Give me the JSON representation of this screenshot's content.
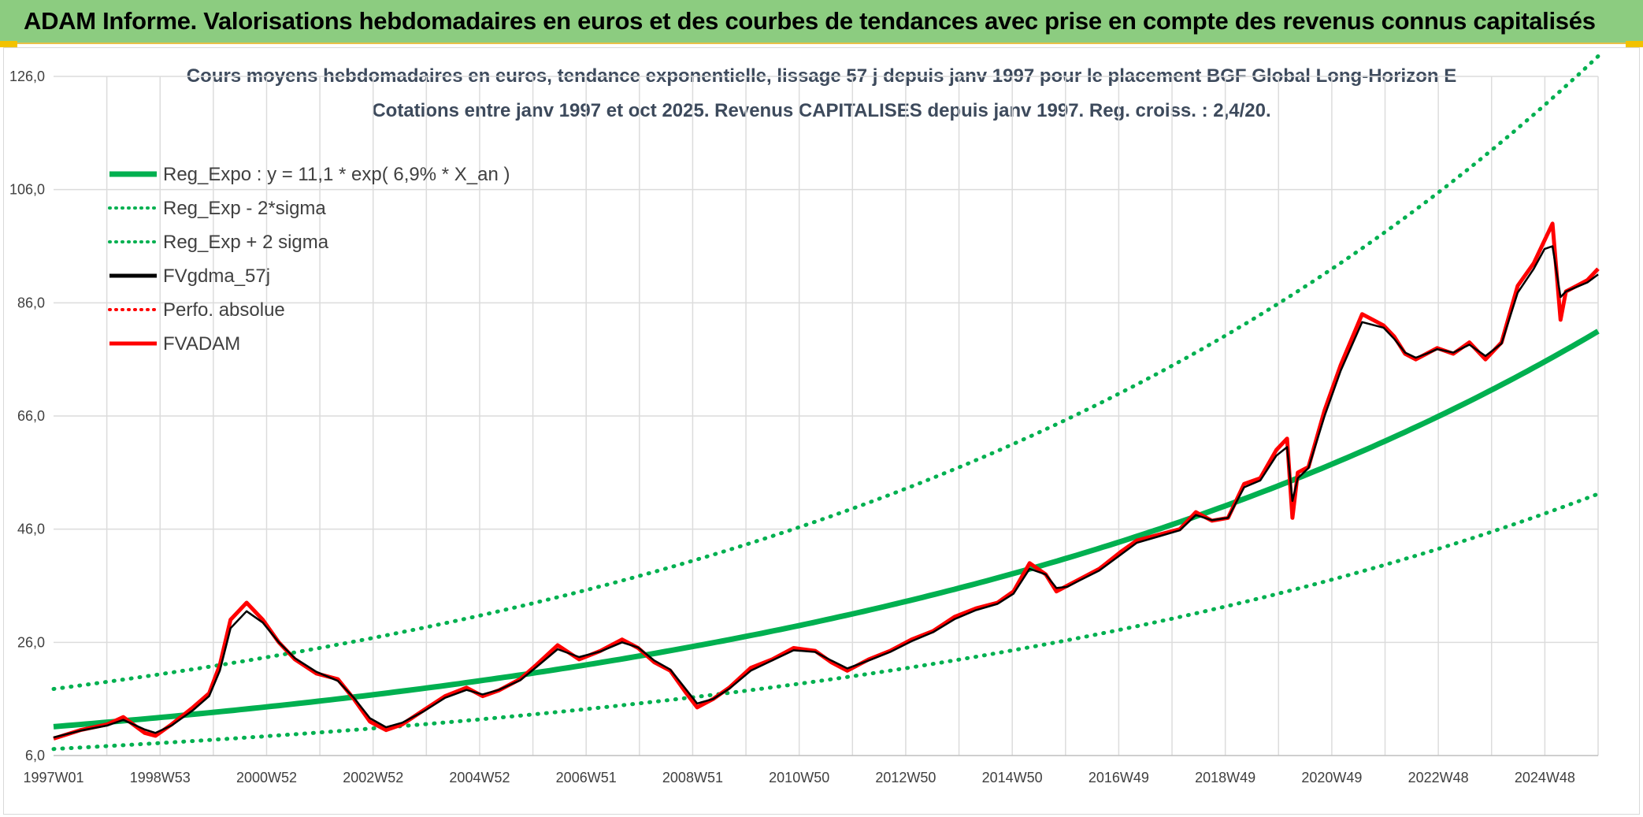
{
  "header": {
    "title": "ADAM Informe. Valorisations hebdomadaires en euros et des courbes de tendances avec prise en compte des revenus connus capitalisés"
  },
  "colors": {
    "banner": "#8ccc80",
    "green": "#00b050",
    "red": "#ff0000",
    "black": "#000000",
    "grid": "#dcdcdc",
    "title": "#3d4a5c"
  },
  "chart_data": {
    "type": "line",
    "title_line1": "Cours moyens hebdomadaires en euros, tendance exponentielle, lissage 57 j depuis janv 1997 pour le placement BGF Global Long-Horizon E",
    "title_line2": "Cotations entre janv 1997 et oct 2025. Revenus CAPITALISES depuis janv 1997. Reg. croiss. : 2,4/20.",
    "xlabel": "",
    "ylabel": "",
    "xlim": [
      1997.0,
      2025.8
    ],
    "ylim": [
      6.0,
      126.0
    ],
    "y_ticks": [
      "6,0",
      "26,0",
      "46,0",
      "66,0",
      "86,0",
      "106,0",
      "126,0"
    ],
    "x_ticks": [
      "1997W01",
      "1998W53",
      "2000W52",
      "2002W52",
      "2004W52",
      "2006W51",
      "2008W51",
      "2010W50",
      "2012W50",
      "2014W50",
      "2016W49",
      "2018W49",
      "2020W49",
      "2022W48",
      "2024W48"
    ],
    "legend": [
      {
        "name": "Reg_Expo : y = 11,1 * exp( 6,9% *  X_an )",
        "style": "solid",
        "color": "#00b050"
      },
      {
        "name": "Reg_Exp - 2*sigma",
        "style": "dotted",
        "color": "#00b050"
      },
      {
        "name": "Reg_Exp + 2 sigma",
        "style": "dotted",
        "color": "#00b050"
      },
      {
        "name": "FVgdma_57j",
        "style": "solid",
        "color": "#000000"
      },
      {
        "name": "Perfo. absolue",
        "style": "dotted",
        "color": "#ff0000"
      },
      {
        "name": "FVADAM",
        "style": "solid",
        "color": "#ff0000"
      }
    ],
    "regression": {
      "a": 11.1,
      "b": 0.069,
      "lower_factor": 0.645,
      "upper_factor": 1.6
    },
    "series": [
      {
        "name": "FVADAM",
        "x": [
          1997.0,
          1997.5,
          1998.0,
          1998.3,
          1998.7,
          1998.9,
          1999.2,
          1999.6,
          1999.9,
          2000.1,
          2000.3,
          2000.6,
          2000.9,
          2001.2,
          2001.5,
          2001.9,
          2002.3,
          2002.6,
          2002.9,
          2003.2,
          2003.5,
          2003.9,
          2004.3,
          2004.7,
          2005.0,
          2005.3,
          2005.7,
          2006.0,
          2006.4,
          2006.8,
          2007.2,
          2007.6,
          2007.9,
          2008.2,
          2008.5,
          2008.8,
          2009.0,
          2009.3,
          2009.6,
          2010.0,
          2010.4,
          2010.8,
          2011.2,
          2011.5,
          2011.8,
          2012.2,
          2012.6,
          2013.0,
          2013.4,
          2013.8,
          2014.2,
          2014.6,
          2014.9,
          2015.2,
          2015.5,
          2015.7,
          2015.9,
          2016.1,
          2016.5,
          2016.9,
          2017.2,
          2017.6,
          2018.0,
          2018.3,
          2018.6,
          2018.9,
          2019.2,
          2019.5,
          2019.8,
          2020.0,
          2020.1,
          2020.2,
          2020.4,
          2020.7,
          2021.0,
          2021.4,
          2021.8,
          2022.0,
          2022.2,
          2022.4,
          2022.6,
          2022.8,
          2023.1,
          2023.4,
          2023.7,
          2024.0,
          2024.3,
          2024.6,
          2024.8,
          2024.95,
          2025.1,
          2025.2,
          2025.4,
          2025.6,
          2025.8
        ],
        "values": [
          9.0,
          10.5,
          11.5,
          12.8,
          10.0,
          9.5,
          11.5,
          14.5,
          17.0,
          22.0,
          30.0,
          33.0,
          30.0,
          26.0,
          23.0,
          20.5,
          19.5,
          16.0,
          12.0,
          10.5,
          11.5,
          14.0,
          16.5,
          18.0,
          16.5,
          17.5,
          19.5,
          22.0,
          25.5,
          23.0,
          24.5,
          26.5,
          25.0,
          22.5,
          21.0,
          17.0,
          14.5,
          16.0,
          18.0,
          21.5,
          23.0,
          25.0,
          24.5,
          22.5,
          21.0,
          23.0,
          24.5,
          26.5,
          28.0,
          30.5,
          32.0,
          33.0,
          35.0,
          40.0,
          38.0,
          35.0,
          36.0,
          37.0,
          39.0,
          42.0,
          44.0,
          45.0,
          46.0,
          49.0,
          47.5,
          48.0,
          54.0,
          55.0,
          60.0,
          62.0,
          48.0,
          56.0,
          57.0,
          67.0,
          75.0,
          84.0,
          82.0,
          80.0,
          77.0,
          76.0,
          77.0,
          78.0,
          77.0,
          79.0,
          76.0,
          79.0,
          89.0,
          93.0,
          97.0,
          100.0,
          83.0,
          88.0,
          89.0,
          90.0,
          92.0
        ]
      },
      {
        "name": "FVgdma_57j",
        "x": [
          1997.0,
          1997.5,
          1998.0,
          1998.3,
          1998.7,
          1998.9,
          1999.2,
          1999.6,
          1999.9,
          2000.1,
          2000.3,
          2000.6,
          2000.9,
          2001.2,
          2001.5,
          2001.9,
          2002.3,
          2002.6,
          2002.9,
          2003.2,
          2003.5,
          2003.9,
          2004.3,
          2004.7,
          2005.0,
          2005.3,
          2005.7,
          2006.0,
          2006.4,
          2006.8,
          2007.2,
          2007.6,
          2007.9,
          2008.2,
          2008.5,
          2008.8,
          2009.0,
          2009.3,
          2009.6,
          2010.0,
          2010.4,
          2010.8,
          2011.2,
          2011.5,
          2011.8,
          2012.2,
          2012.6,
          2013.0,
          2013.4,
          2013.8,
          2014.2,
          2014.6,
          2014.9,
          2015.2,
          2015.5,
          2015.7,
          2015.9,
          2016.1,
          2016.5,
          2016.9,
          2017.2,
          2017.6,
          2018.0,
          2018.3,
          2018.6,
          2018.9,
          2019.2,
          2019.5,
          2019.8,
          2020.0,
          2020.1,
          2020.2,
          2020.4,
          2020.7,
          2021.0,
          2021.4,
          2021.8,
          2022.0,
          2022.2,
          2022.4,
          2022.6,
          2022.8,
          2023.1,
          2023.4,
          2023.7,
          2024.0,
          2024.3,
          2024.6,
          2024.8,
          2024.95,
          2025.1,
          2025.2,
          2025.4,
          2025.6,
          2025.8
        ],
        "values": [
          9.2,
          10.4,
          11.3,
          12.3,
          10.6,
          10.0,
          11.3,
          14.0,
          16.5,
          21.0,
          28.5,
          31.5,
          29.5,
          26.0,
          23.2,
          20.8,
          19.2,
          16.2,
          12.6,
          11.0,
          11.8,
          13.8,
          16.2,
          17.6,
          16.8,
          17.6,
          19.3,
          21.6,
          24.8,
          23.4,
          24.4,
          26.0,
          25.1,
          22.8,
          21.2,
          17.6,
          15.2,
          16.0,
          17.8,
          21.0,
          22.8,
          24.6,
          24.3,
          22.8,
          21.4,
          22.8,
          24.3,
          26.2,
          27.8,
          30.1,
          31.7,
          32.8,
          34.6,
          39.0,
          38.0,
          35.6,
          35.8,
          36.8,
          38.7,
          41.5,
          43.6,
          44.7,
          45.8,
          48.5,
          47.6,
          48.0,
          53.4,
          54.6,
          59.0,
          60.5,
          51.0,
          55.0,
          56.8,
          66.0,
          74.0,
          82.6,
          81.6,
          79.6,
          77.2,
          76.3,
          77.0,
          77.8,
          77.2,
          78.6,
          76.6,
          78.8,
          87.8,
          92.0,
          95.5,
          96.0,
          87.0,
          88.0,
          88.8,
          89.6,
          91.0
        ]
      }
    ]
  }
}
